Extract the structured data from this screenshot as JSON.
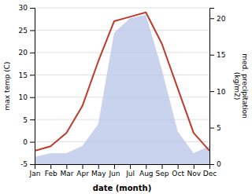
{
  "chart_data": {
    "type": "line",
    "categories": [
      "Jan",
      "Feb",
      "Mar",
      "Apr",
      "May",
      "Jun",
      "Jul",
      "Aug",
      "Sep",
      "Oct",
      "Nov",
      "Dec"
    ],
    "series": [
      {
        "type": "line",
        "color": "#c0392b",
        "values": [
          -2,
          -1,
          2,
          8,
          18,
          27,
          28,
          29,
          22,
          12,
          2,
          -2
        ]
      },
      {
        "type": "area",
        "color": "#b8c4e8",
        "axis": "y2",
        "values": [
          1.0,
          1.5,
          1.5,
          2.5,
          5.5,
          18.0,
          20.0,
          20.5,
          13.0,
          4.5,
          1.5,
          2.5
        ]
      }
    ],
    "ylim": [
      -5,
      30
    ],
    "yticks": [
      -5,
      0,
      5,
      10,
      15,
      20,
      25,
      30
    ],
    "y2lim": [
      0,
      21.43
    ],
    "y2ticks": [
      0,
      5,
      10,
      15,
      20
    ],
    "ylabel": "max temp (C)",
    "y2label": "med. precipitation\n(kg/m2)",
    "xlabel": "date (month)",
    "grid": true
  }
}
